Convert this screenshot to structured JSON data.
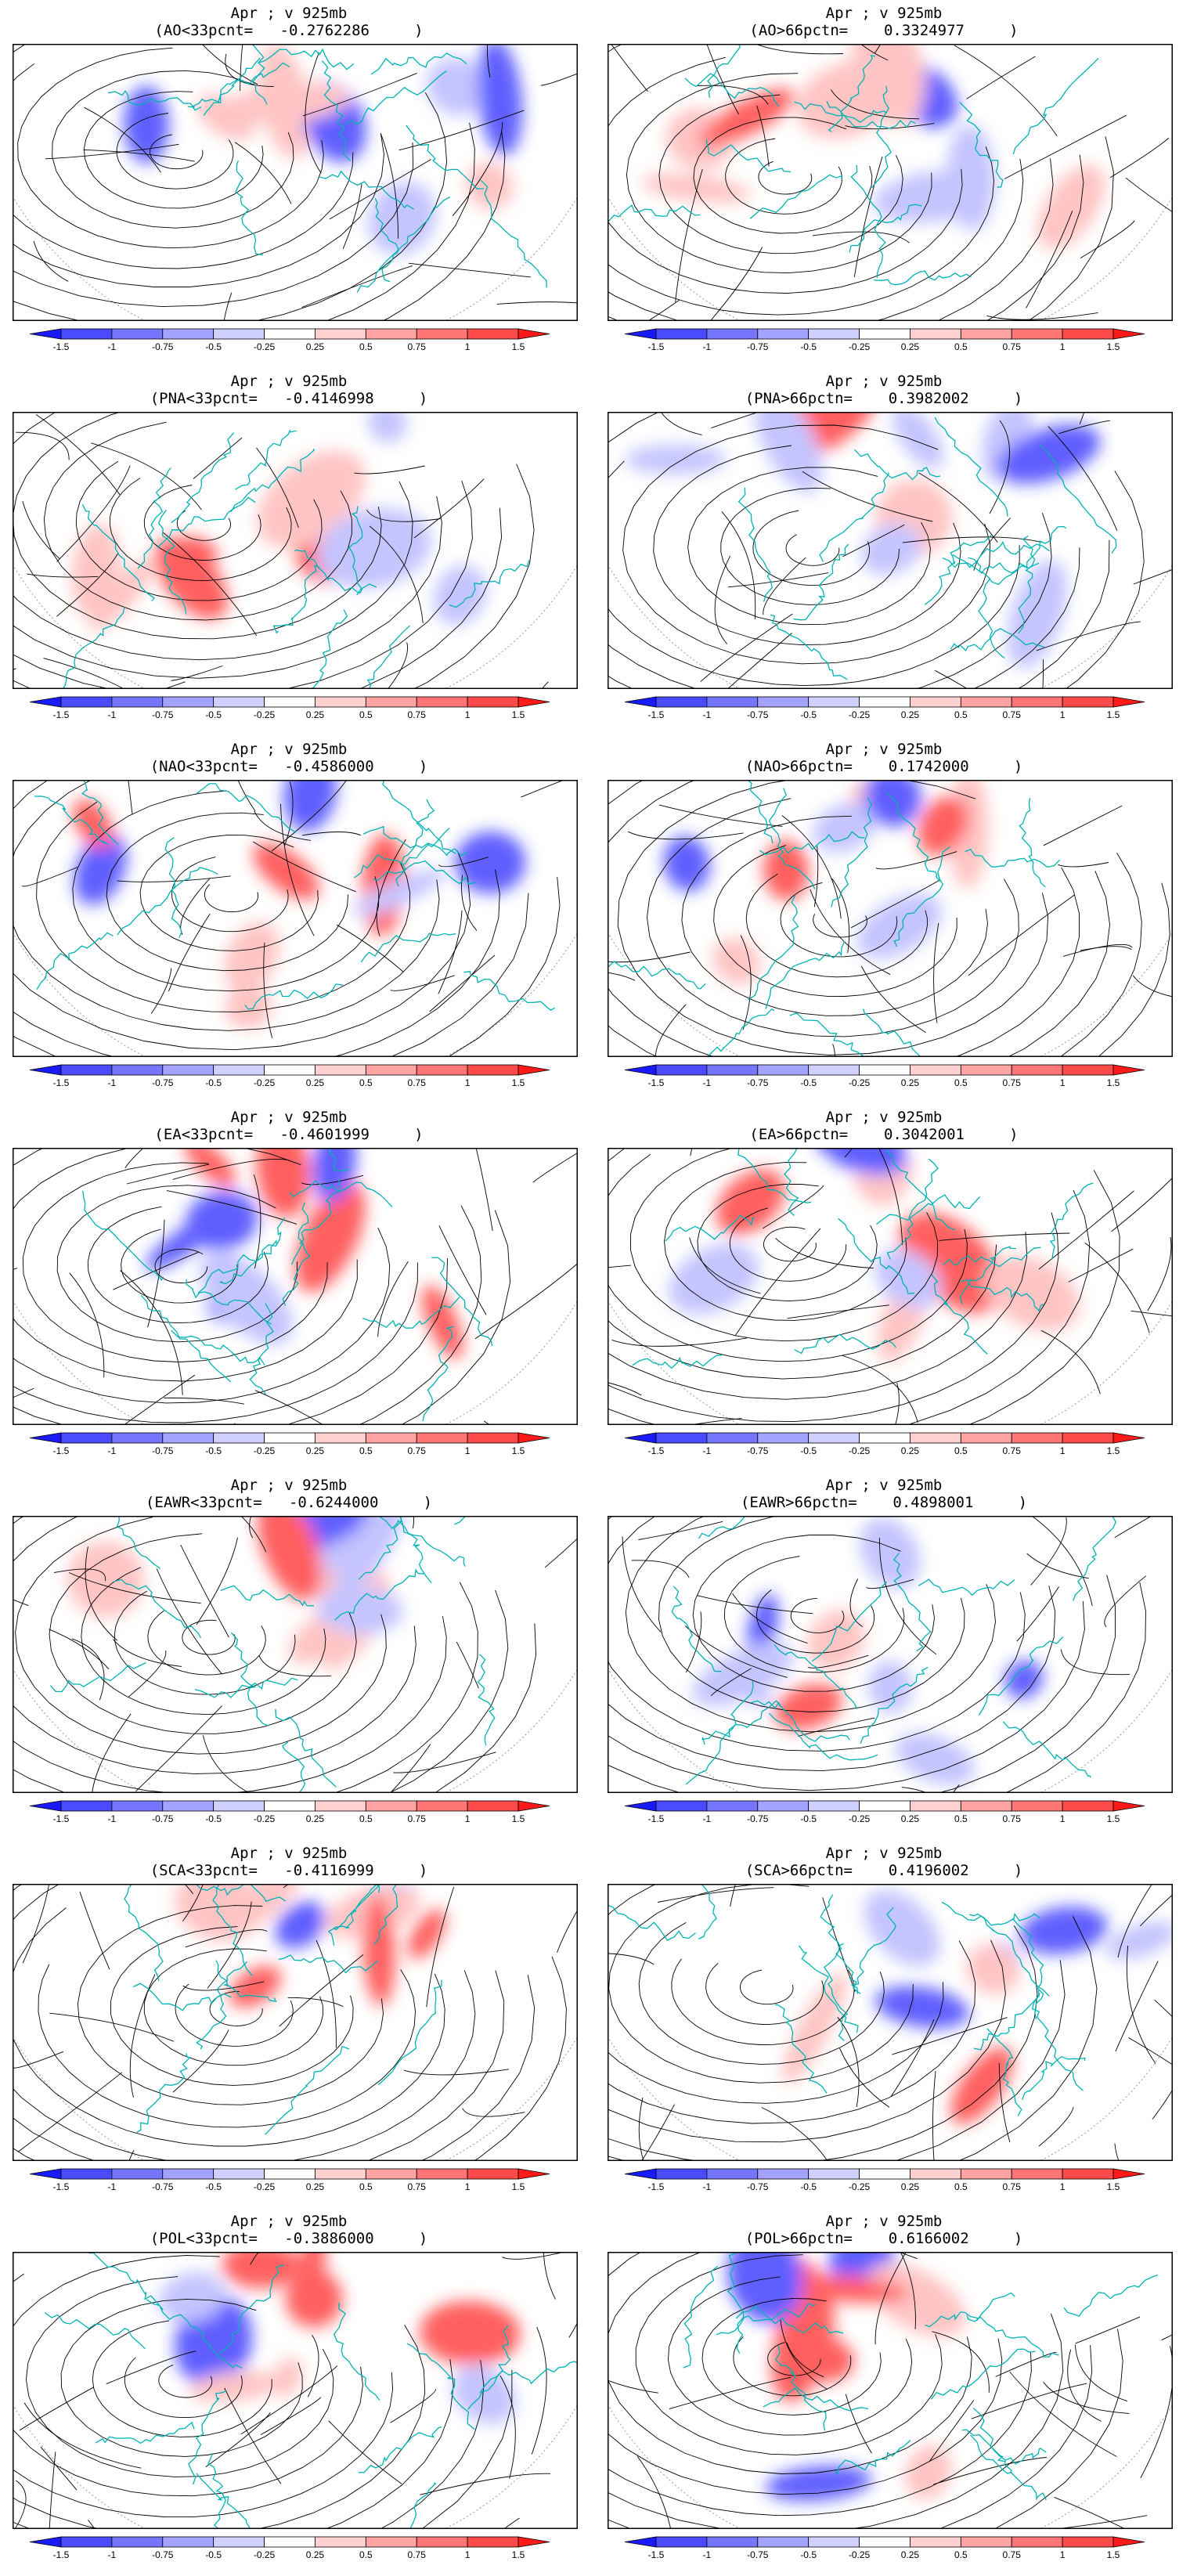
{
  "figure": {
    "colorbar": {
      "tick_labels": [
        "-1.5",
        "-1",
        "-0.75",
        "-0.5",
        "-0.25",
        "0.25",
        "0.5",
        "0.75",
        "1",
        "1.5"
      ],
      "colors": [
        "#1a1aff",
        "#4a4aff",
        "#7575ff",
        "#a3a3ff",
        "#d0d0ff",
        "#ffffff",
        "#ffd0d0",
        "#ffa3a3",
        "#ff7575",
        "#ff4a4a",
        "#ff1a1a"
      ]
    },
    "panels": [
      {
        "title": "Apr ; v 925mb",
        "subtitle": "(AO<33pcnt=   -0.2762286     )"
      },
      {
        "title": "Apr ; v 925mb",
        "subtitle": "(AO>66pctn=    0.3324977     )"
      },
      {
        "title": "Apr ; v 925mb",
        "subtitle": "(PNA<33pcnt=   -0.4146998     )"
      },
      {
        "title": "Apr ; v 925mb",
        "subtitle": "(PNA>66pctn=    0.3982002     )"
      },
      {
        "title": "Apr ; v 925mb",
        "subtitle": "(NAO<33pcnt=   -0.4586000     )"
      },
      {
        "title": "Apr ; v 925mb",
        "subtitle": "(NAO>66pctn=    0.1742000     )"
      },
      {
        "title": "Apr ; v 925mb",
        "subtitle": "(EA<33pcnt=   -0.4601999     )"
      },
      {
        "title": "Apr ; v 925mb",
        "subtitle": "(EA>66pctn=    0.3042001     )"
      },
      {
        "title": "Apr ; v 925mb",
        "subtitle": "(EAWR<33pcnt=   -0.6244000     )"
      },
      {
        "title": "Apr ; v 925mb",
        "subtitle": "(EAWR>66pctn=    0.4898001     )"
      },
      {
        "title": "Apr ; v 925mb",
        "subtitle": "(SCA<33pcnt=   -0.4116999     )"
      },
      {
        "title": "Apr ; v 925mb",
        "subtitle": "(SCA>66pctn=    0.4196002     )"
      },
      {
        "title": "Apr ; v 925mb",
        "subtitle": "(POL<33pcnt=   -0.3886000     )"
      },
      {
        "title": "Apr ; v 925mb",
        "subtitle": "(POL>66pctn=    0.6166002     )"
      }
    ]
  }
}
